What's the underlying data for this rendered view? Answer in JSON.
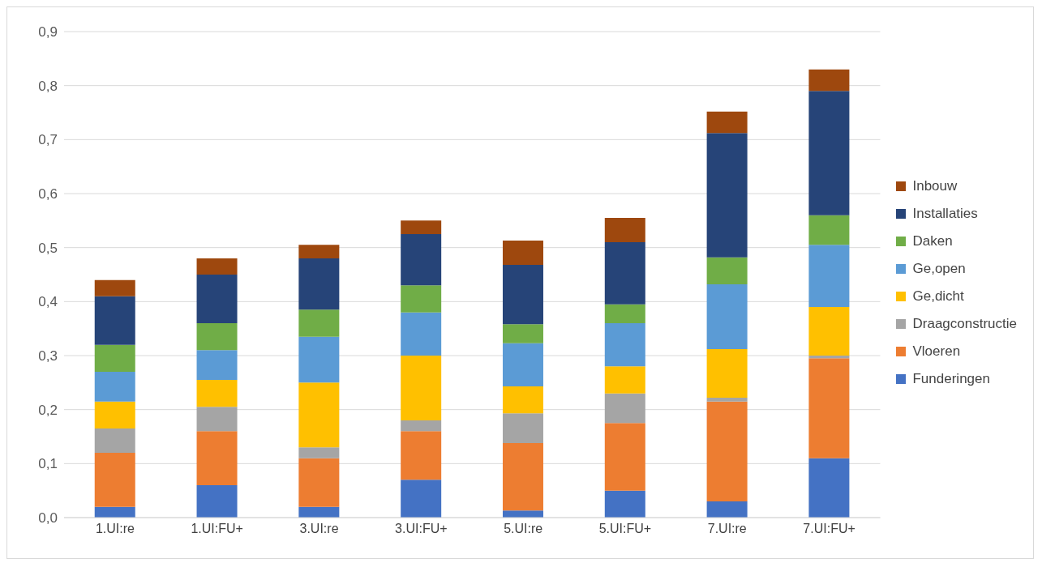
{
  "chart_data": {
    "type": "bar",
    "stacked": true,
    "categories": [
      "1.UI:re",
      "1.UI:FU+",
      "3.UI:re",
      "3.UI:FU+",
      "5.UI:re",
      "5.UI:FU+",
      "7.UI:re",
      "7.UI:FU+"
    ],
    "series": [
      {
        "name": "Funderingen",
        "color": "#4472c4",
        "values": [
          0.02,
          0.06,
          0.02,
          0.07,
          0.013,
          0.05,
          0.03,
          0.11
        ]
      },
      {
        "name": "Vloeren",
        "color": "#ed7d31",
        "values": [
          0.1,
          0.1,
          0.09,
          0.09,
          0.125,
          0.125,
          0.185,
          0.185
        ]
      },
      {
        "name": "Draagconstructie",
        "color": "#a5a5a5",
        "values": [
          0.045,
          0.045,
          0.02,
          0.02,
          0.055,
          0.055,
          0.007,
          0.005
        ]
      },
      {
        "name": "Ge,dicht",
        "color": "#ffc000",
        "values": [
          0.05,
          0.05,
          0.12,
          0.12,
          0.05,
          0.05,
          0.09,
          0.09
        ]
      },
      {
        "name": "Ge,open",
        "color": "#5b9bd5",
        "values": [
          0.055,
          0.055,
          0.085,
          0.08,
          0.08,
          0.08,
          0.12,
          0.115
        ]
      },
      {
        "name": "Daken",
        "color": "#70ad47",
        "values": [
          0.05,
          0.05,
          0.05,
          0.05,
          0.035,
          0.035,
          0.05,
          0.055
        ]
      },
      {
        "name": "Installaties",
        "color": "#264478",
        "values": [
          0.09,
          0.09,
          0.095,
          0.095,
          0.11,
          0.115,
          0.23,
          0.23
        ]
      },
      {
        "name": "Inbouw",
        "color": "#9e480e",
        "values": [
          0.03,
          0.03,
          0.025,
          0.025,
          0.045,
          0.045,
          0.04,
          0.04
        ]
      }
    ],
    "ylim": [
      0,
      0.9
    ],
    "yticks": [
      {
        "value": 0,
        "label": "0,0"
      },
      {
        "value": 0.1,
        "label": "0,1"
      },
      {
        "value": 0.2,
        "label": "0,2"
      },
      {
        "value": 0.3,
        "label": "0,3"
      },
      {
        "value": 0.4,
        "label": "0,4"
      },
      {
        "value": 0.5,
        "label": "0,5"
      },
      {
        "value": 0.6,
        "label": "0,6"
      },
      {
        "value": 0.7,
        "label": "0,7"
      },
      {
        "value": 0.8,
        "label": "0,8"
      },
      {
        "value": 0.9,
        "label": "0,9"
      }
    ],
    "grid": "y",
    "legend": "right"
  }
}
